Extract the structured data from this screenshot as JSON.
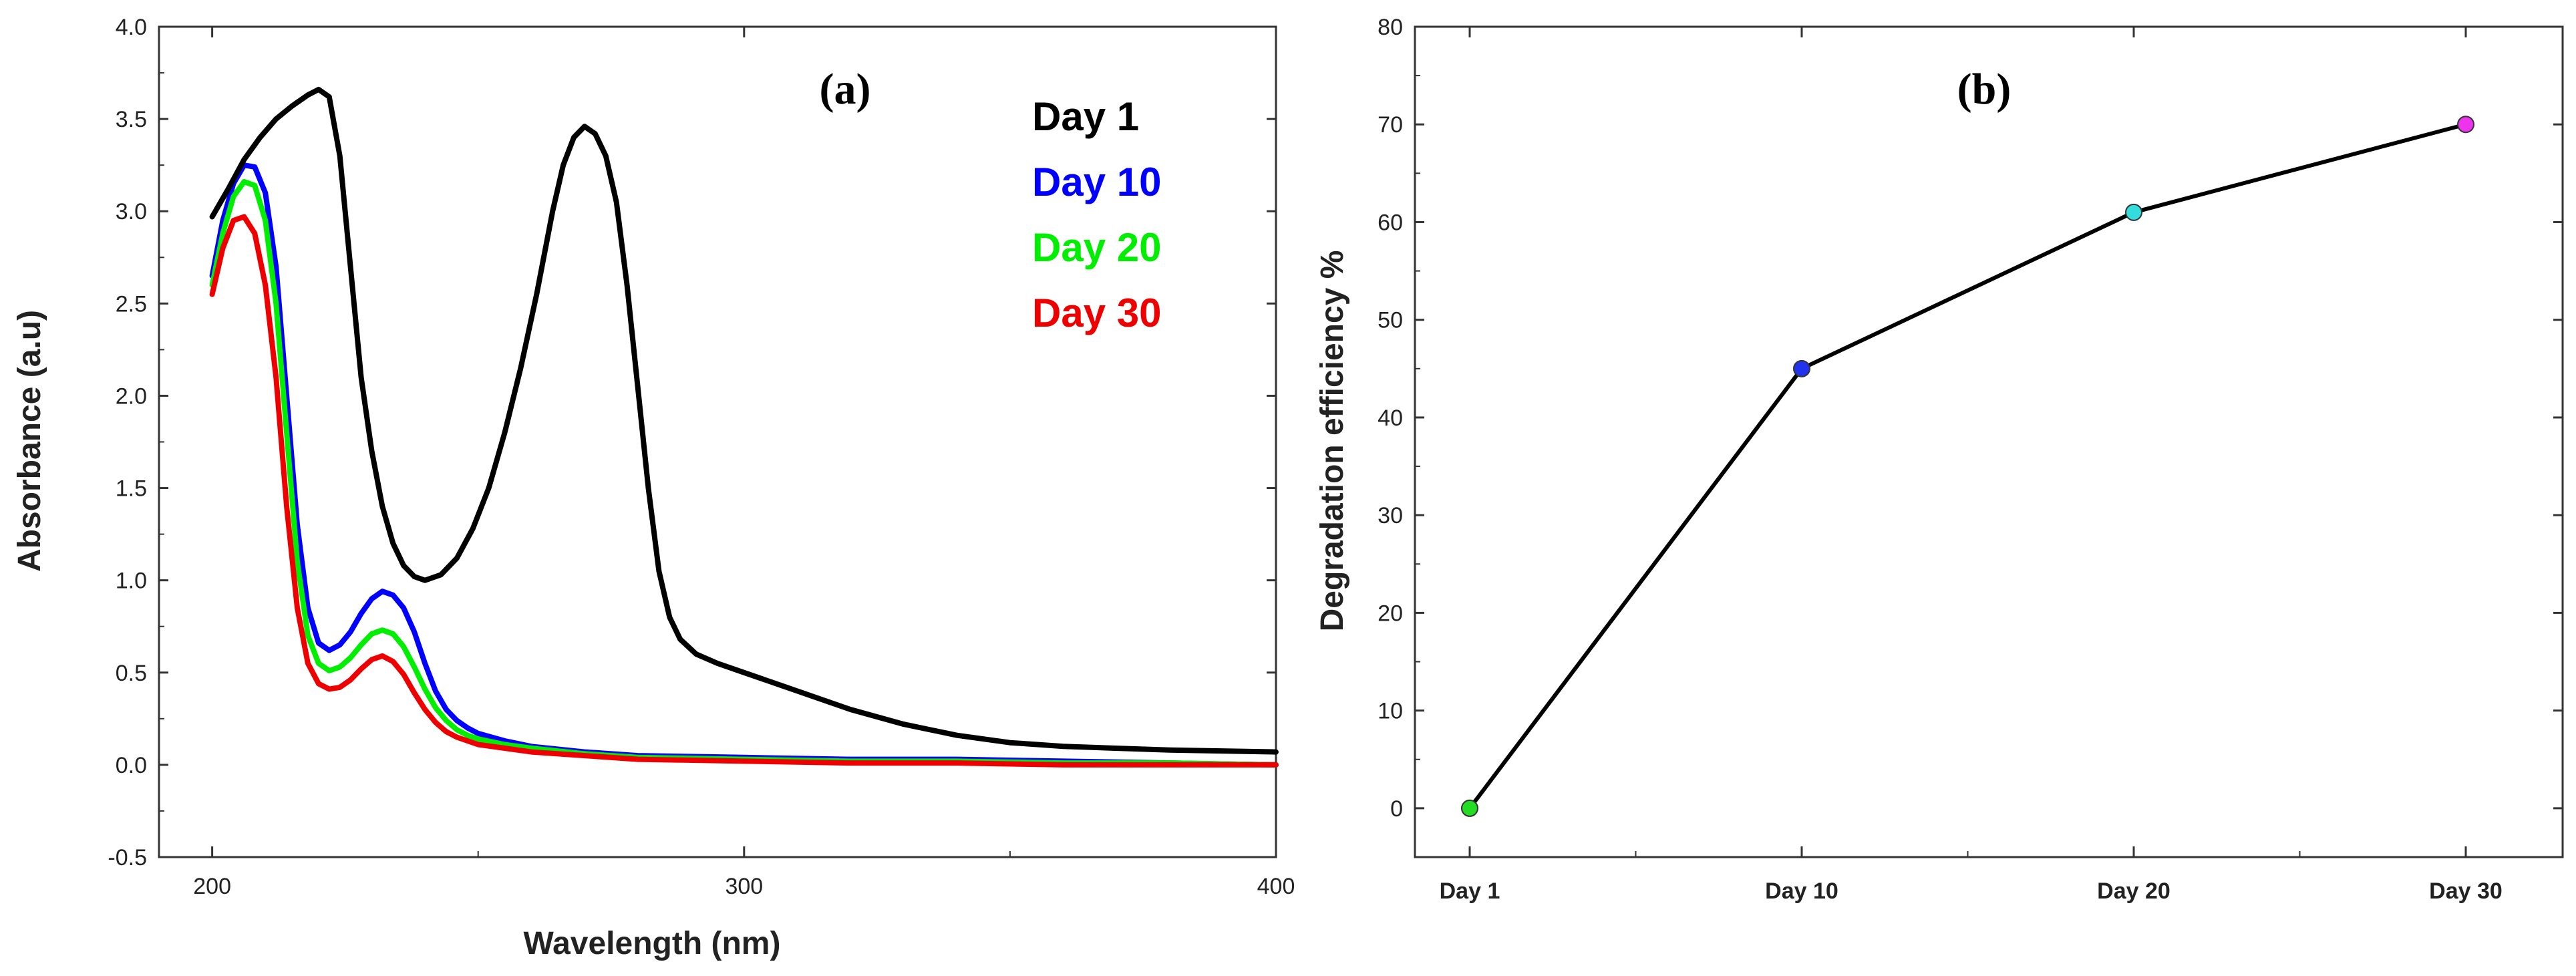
{
  "chart_data": [
    {
      "id": "a",
      "type": "line",
      "panel_label": "(a)",
      "xlabel": "Wavelength (nm)",
      "ylabel": "Absorbance (a.u)",
      "xlim": [
        190,
        400
      ],
      "ylim": [
        -0.5,
        4.0
      ],
      "xticks": [
        200,
        300,
        400
      ],
      "yticks": [
        -0.5,
        0.0,
        0.5,
        1.0,
        1.5,
        2.0,
        2.5,
        3.0,
        3.5,
        4.0
      ],
      "ytick_labels": [
        "-0.5",
        "0.0",
        "0.5",
        "1.0",
        "1.5",
        "2.0",
        "2.5",
        "3.0",
        "3.5",
        "4.0"
      ],
      "legend_position": "top-right",
      "series": [
        {
          "name": "Day 1",
          "color": "#000000",
          "x": [
            200,
            203,
            206,
            209,
            212,
            215,
            218,
            220,
            222,
            224,
            226,
            228,
            230,
            232,
            234,
            236,
            238,
            240,
            243,
            246,
            249,
            252,
            255,
            258,
            261,
            264,
            266,
            268,
            270,
            272,
            274,
            276,
            278,
            280,
            282,
            284,
            286,
            288,
            291,
            295,
            300,
            310,
            320,
            330,
            340,
            350,
            360,
            380,
            400
          ],
          "y": [
            2.97,
            3.12,
            3.28,
            3.4,
            3.5,
            3.57,
            3.63,
            3.66,
            3.62,
            3.3,
            2.7,
            2.1,
            1.7,
            1.4,
            1.2,
            1.08,
            1.02,
            1.0,
            1.03,
            1.12,
            1.28,
            1.5,
            1.8,
            2.15,
            2.55,
            3.0,
            3.25,
            3.4,
            3.46,
            3.42,
            3.3,
            3.05,
            2.6,
            2.05,
            1.5,
            1.05,
            0.8,
            0.68,
            0.6,
            0.55,
            0.5,
            0.4,
            0.3,
            0.22,
            0.16,
            0.12,
            0.1,
            0.08,
            0.07
          ]
        },
        {
          "name": "Day 10",
          "color": "#0000ff",
          "x": [
            200,
            202,
            204,
            206,
            208,
            210,
            212,
            214,
            216,
            218,
            220,
            222,
            224,
            226,
            228,
            230,
            232,
            234,
            236,
            238,
            240,
            242,
            244,
            246,
            248,
            250,
            255,
            260,
            270,
            280,
            300,
            320,
            340,
            360,
            380,
            400
          ],
          "y": [
            2.65,
            2.95,
            3.15,
            3.25,
            3.24,
            3.1,
            2.7,
            2.0,
            1.3,
            0.85,
            0.66,
            0.62,
            0.65,
            0.72,
            0.82,
            0.9,
            0.94,
            0.92,
            0.85,
            0.72,
            0.55,
            0.4,
            0.3,
            0.24,
            0.2,
            0.17,
            0.13,
            0.1,
            0.07,
            0.05,
            0.04,
            0.03,
            0.03,
            0.02,
            0.01,
            0.0
          ]
        },
        {
          "name": "Day 20",
          "color": "#00ee00",
          "x": [
            200,
            202,
            204,
            206,
            208,
            210,
            212,
            214,
            216,
            218,
            220,
            222,
            224,
            226,
            228,
            230,
            232,
            234,
            236,
            238,
            240,
            242,
            244,
            246,
            248,
            250,
            255,
            260,
            270,
            280,
            300,
            320,
            340,
            360,
            380,
            400
          ],
          "y": [
            2.6,
            2.88,
            3.08,
            3.16,
            3.14,
            2.95,
            2.5,
            1.8,
            1.1,
            0.7,
            0.55,
            0.51,
            0.53,
            0.58,
            0.65,
            0.71,
            0.73,
            0.71,
            0.64,
            0.53,
            0.41,
            0.31,
            0.24,
            0.19,
            0.16,
            0.14,
            0.11,
            0.09,
            0.06,
            0.04,
            0.03,
            0.02,
            0.02,
            0.01,
            0.01,
            0.0
          ]
        },
        {
          "name": "Day 30",
          "color": "#ee0000",
          "x": [
            200,
            202,
            204,
            206,
            208,
            210,
            212,
            214,
            216,
            218,
            220,
            222,
            224,
            226,
            228,
            230,
            232,
            234,
            236,
            238,
            240,
            242,
            244,
            246,
            248,
            250,
            255,
            260,
            270,
            280,
            300,
            320,
            340,
            360,
            380,
            400
          ],
          "y": [
            2.55,
            2.8,
            2.95,
            2.97,
            2.88,
            2.6,
            2.1,
            1.4,
            0.85,
            0.55,
            0.44,
            0.41,
            0.42,
            0.46,
            0.52,
            0.57,
            0.59,
            0.56,
            0.49,
            0.39,
            0.3,
            0.23,
            0.18,
            0.15,
            0.13,
            0.11,
            0.09,
            0.07,
            0.05,
            0.03,
            0.02,
            0.01,
            0.01,
            0.0,
            0.0,
            0.0
          ]
        }
      ]
    },
    {
      "id": "b",
      "type": "line",
      "panel_label": "(b)",
      "xlabel": "",
      "ylabel": "Degradation efficiency %",
      "categories": [
        "Day 1",
        "Day 10",
        "Day 20",
        "Day 30"
      ],
      "values": [
        0,
        45,
        61,
        70
      ],
      "point_colors": [
        "#22dd22",
        "#2233ee",
        "#33dddd",
        "#ee33ee"
      ],
      "line_color": "#000000",
      "ylim": [
        -5,
        80
      ],
      "yticks": [
        0,
        10,
        20,
        30,
        40,
        50,
        60,
        70,
        80
      ],
      "ytick_labels": [
        "0",
        "10",
        "20",
        "30",
        "40",
        "50",
        "60",
        "70",
        "80"
      ]
    }
  ]
}
